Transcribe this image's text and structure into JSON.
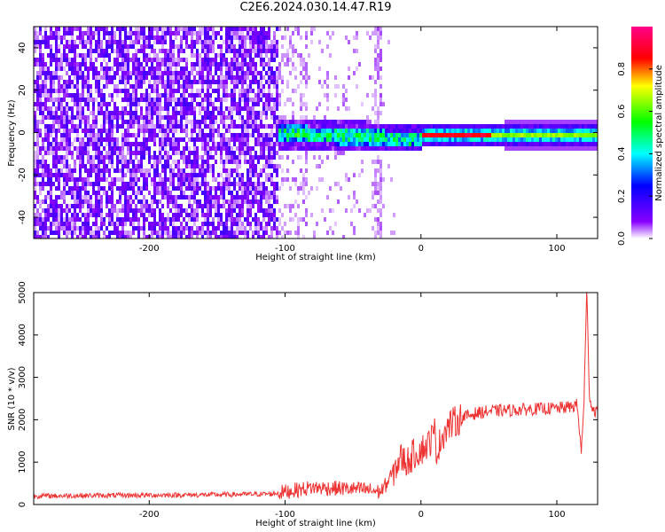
{
  "title": "C2E6.2024.030.14.47.R19",
  "chart_data": [
    {
      "type": "heatmap",
      "xlabel": "Height of straight line (km)",
      "ylabel": "Frequency (Hz)",
      "xlim": [
        -285,
        130
      ],
      "ylim": [
        -50,
        50
      ],
      "x_ticks": [
        -200,
        -100,
        0,
        100
      ],
      "y_ticks": [
        -40,
        -20,
        0,
        20,
        40
      ],
      "colorbar": {
        "label": "Normalized spectral amplitude",
        "range": [
          0,
          1
        ],
        "ticks": [
          0.0,
          0.2,
          0.4,
          0.6,
          0.8
        ],
        "colors": [
          "#ffffff",
          "#8800ff",
          "#0000ff",
          "#00ffff",
          "#00ff00",
          "#ffff00",
          "#ff0000",
          "#ff0088"
        ]
      },
      "features": [
        {
          "x_range": [
            -285,
            -105
          ],
          "description_level": 0.15
        },
        {
          "x_range": [
            -105,
            0
          ],
          "center_freq": 0,
          "level": 0.4
        },
        {
          "x_range": [
            0,
            130
          ],
          "center_freq": 0,
          "level": 0.8
        }
      ]
    },
    {
      "type": "line",
      "xlabel": "Height of straight line (km)",
      "ylabel": "SNR (10 * v/v)",
      "xlim": [
        -285,
        130
      ],
      "ylim": [
        0,
        5000
      ],
      "x_ticks": [
        -200,
        -100,
        0,
        100
      ],
      "y_ticks": [
        0,
        1000,
        2000,
        3000,
        4000,
        5000
      ],
      "series": [
        {
          "color": "#ee3333",
          "x": [
            -285,
            -250,
            -200,
            -150,
            -110,
            -100,
            -80,
            -60,
            -40,
            -30,
            -25,
            -20,
            -15,
            -10,
            -5,
            0,
            5,
            10,
            12,
            15,
            20,
            25,
            30,
            40,
            50,
            60,
            70,
            80,
            90,
            100,
            110,
            115,
            118,
            120,
            122,
            124,
            126,
            130
          ],
          "y": [
            200,
            210,
            220,
            230,
            250,
            300,
            400,
            380,
            350,
            300,
            500,
            800,
            1100,
            1000,
            1200,
            1300,
            1400,
            1700,
            1200,
            1600,
            1850,
            1950,
            2050,
            2150,
            2200,
            2220,
            2230,
            2250,
            2260,
            2270,
            2300,
            2350,
            1200,
            2500,
            5000,
            2600,
            2250,
            2200
          ]
        }
      ]
    }
  ]
}
